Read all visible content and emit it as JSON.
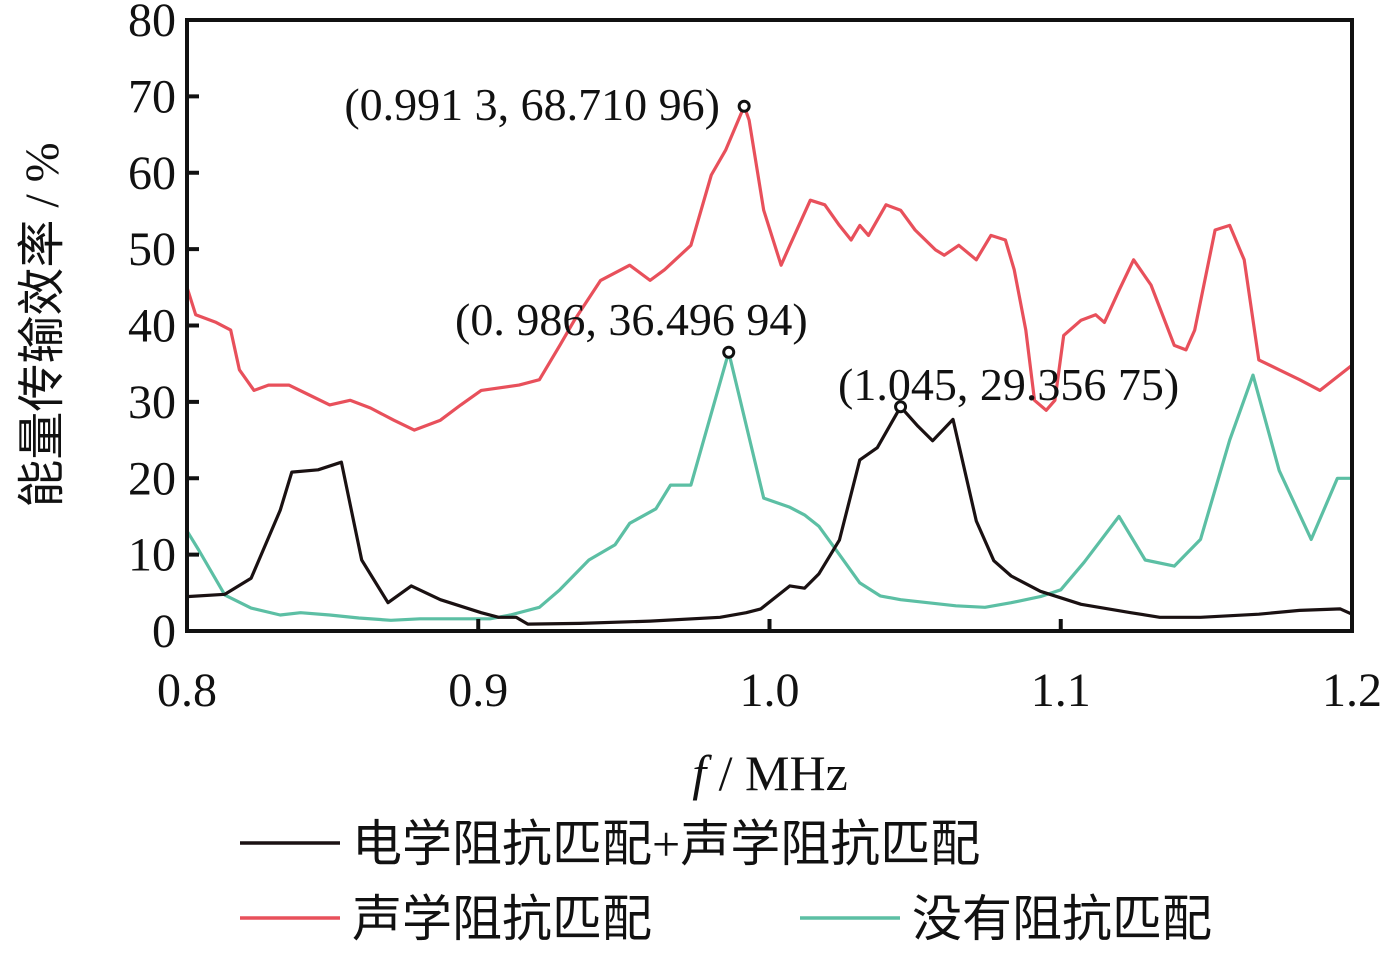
{
  "chart_data": {
    "type": "line",
    "title": "",
    "xlabel_italic": "f",
    "xlabel_rest": " / MHz",
    "ylabel": "能量传输效率 / %",
    "xlim": [
      0.8,
      1.2
    ],
    "ylim": [
      0,
      80
    ],
    "xticks": [
      0.8,
      0.9,
      1.0,
      1.1,
      1.2
    ],
    "xtick_labels": [
      "0.8",
      "0.9",
      "1.0",
      "1.1",
      "1.2"
    ],
    "yticks": [
      0,
      10,
      20,
      30,
      40,
      50,
      60,
      70,
      80
    ],
    "ytick_labels": [
      "0",
      "10",
      "20",
      "30",
      "40",
      "50",
      "60",
      "70",
      "80"
    ],
    "grid": false,
    "legend_position": "bottom",
    "series": [
      {
        "name": "电学阻抗匹配+声学阻抗匹配",
        "color": "#1a1112",
        "x": [
          0.8,
          0.813,
          0.822,
          0.832,
          0.836,
          0.845,
          0.853,
          0.86,
          0.869,
          0.877,
          0.887,
          0.892,
          0.901,
          0.907,
          0.913,
          0.917,
          0.935,
          0.959,
          0.983,
          0.992,
          0.997,
          1.007,
          1.012,
          1.017,
          1.024,
          1.031,
          1.037,
          1.045,
          1.051,
          1.056,
          1.063,
          1.071,
          1.077,
          1.083,
          1.093,
          1.107,
          1.124,
          1.134,
          1.148,
          1.168,
          1.182,
          1.196,
          1.2
        ],
        "y": [
          4.5,
          4.8,
          6.9,
          15.8,
          20.8,
          21.1,
          22.1,
          9.3,
          3.7,
          5.9,
          4.1,
          3.5,
          2.4,
          1.8,
          1.8,
          0.9,
          1.0,
          1.3,
          1.8,
          2.4,
          2.9,
          5.9,
          5.6,
          7.5,
          11.9,
          22.4,
          24.0,
          29.36,
          26.8,
          24.9,
          27.7,
          14.4,
          9.2,
          7.2,
          5.2,
          3.5,
          2.4,
          1.8,
          1.8,
          2.2,
          2.7,
          2.9,
          2.2
        ]
      },
      {
        "name": "声学阻抗匹配",
        "color": "#e8505b",
        "x": [
          0.8,
          0.803,
          0.81,
          0.815,
          0.818,
          0.823,
          0.828,
          0.835,
          0.842,
          0.849,
          0.856,
          0.863,
          0.871,
          0.878,
          0.887,
          0.894,
          0.901,
          0.914,
          0.921,
          0.928,
          0.933,
          0.942,
          0.952,
          0.959,
          0.964,
          0.973,
          0.98,
          0.985,
          0.9913,
          0.993,
          0.998,
          1.004,
          1.007,
          1.014,
          1.019,
          1.024,
          1.028,
          1.031,
          1.034,
          1.04,
          1.045,
          1.05,
          1.057,
          1.06,
          1.065,
          1.071,
          1.076,
          1.081,
          1.084,
          1.088,
          1.091,
          1.095,
          1.098,
          1.101,
          1.107,
          1.112,
          1.115,
          1.12,
          1.125,
          1.131,
          1.139,
          1.143,
          1.146,
          1.153,
          1.158,
          1.163,
          1.168,
          1.175,
          1.182,
          1.189,
          1.2
        ],
        "y": [
          45.0,
          41.4,
          40.4,
          39.4,
          34.2,
          31.5,
          32.2,
          32.2,
          30.9,
          29.6,
          30.2,
          29.2,
          27.6,
          26.3,
          27.6,
          29.6,
          31.5,
          32.2,
          32.9,
          37.4,
          40.7,
          45.9,
          47.9,
          45.9,
          47.3,
          50.5,
          59.7,
          63.0,
          68.71,
          66.9,
          55.1,
          47.9,
          50.5,
          56.4,
          55.8,
          53.1,
          51.2,
          53.1,
          51.8,
          55.8,
          55.1,
          52.5,
          49.9,
          49.2,
          50.5,
          48.6,
          51.8,
          51.2,
          47.3,
          39.4,
          30.2,
          28.9,
          30.2,
          38.7,
          40.7,
          41.4,
          40.4,
          44.6,
          48.6,
          45.3,
          37.4,
          36.8,
          39.4,
          52.5,
          53.1,
          48.6,
          35.5,
          34.2,
          32.9,
          31.5,
          34.8
        ]
      },
      {
        "name": "没有阻抗匹配",
        "color": "#5cbfa4",
        "x": [
          0.8,
          0.804,
          0.813,
          0.822,
          0.832,
          0.839,
          0.849,
          0.859,
          0.87,
          0.88,
          0.894,
          0.904,
          0.911,
          0.921,
          0.928,
          0.938,
          0.947,
          0.952,
          0.961,
          0.966,
          0.973,
          0.986,
          0.998,
          1.007,
          1.012,
          1.017,
          1.024,
          1.031,
          1.038,
          1.045,
          1.064,
          1.074,
          1.083,
          1.093,
          1.1,
          1.108,
          1.12,
          1.129,
          1.139,
          1.148,
          1.158,
          1.166,
          1.175,
          1.186,
          1.195,
          1.2
        ],
        "y": [
          13.1,
          10.6,
          4.7,
          3.0,
          2.1,
          2.4,
          2.1,
          1.7,
          1.4,
          1.6,
          1.6,
          1.6,
          2.1,
          3.1,
          5.4,
          9.3,
          11.3,
          14.1,
          16.0,
          19.1,
          19.1,
          36.5,
          17.4,
          16.2,
          15.2,
          13.7,
          10.0,
          6.3,
          4.6,
          4.1,
          3.3,
          3.1,
          3.7,
          4.5,
          5.4,
          9.0,
          15.0,
          9.3,
          8.5,
          12.0,
          25.0,
          33.5,
          21.0,
          12.0,
          20.0,
          20.0
        ]
      }
    ],
    "annotations": [
      {
        "text": "(0.991 3, 68.710 96)",
        "x": 0.9913,
        "y": 68.71
      },
      {
        "text": "(0. 986, 36.496 94)",
        "x": 0.986,
        "y": 36.5
      },
      {
        "text": "(1.045, 29.356 75)",
        "x": 1.045,
        "y": 29.36
      }
    ]
  }
}
